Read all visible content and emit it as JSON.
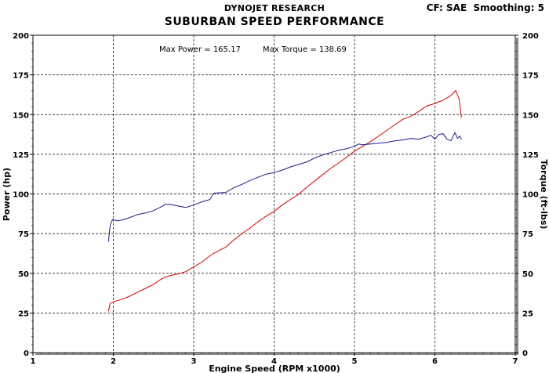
{
  "header": {
    "brand": "DYNOJET RESEARCH",
    "title": "SUBURBAN SPEED PERFORMANCE",
    "settings": "CF: SAE  Smoothing: 5"
  },
  "chart_data": {
    "type": "line",
    "xlabel": "Engine Speed (RPM x1000)",
    "ylabel_left": "Power (hp)",
    "ylabel_right": "Torque (ft-lbs)",
    "xlim": [
      1,
      7
    ],
    "ylim": [
      0,
      200
    ],
    "x_ticks": [
      "1",
      "2",
      "3",
      "4",
      "5",
      "6",
      "7"
    ],
    "y_ticks": [
      "0",
      "25",
      "50",
      "75",
      "100",
      "125",
      "150",
      "175",
      "200"
    ],
    "grid": true,
    "annotation": {
      "max_power_label": "Max Power = 165.17",
      "max_torque_label": "Max Torque = 138.69"
    },
    "series": [
      {
        "name": "Power",
        "axis": "left",
        "color": "#d00000",
        "points": [
          [
            1.94,
            26
          ],
          [
            1.96,
            31
          ],
          [
            2.0,
            32
          ],
          [
            2.1,
            33.5
          ],
          [
            2.2,
            35.5
          ],
          [
            2.3,
            38
          ],
          [
            2.4,
            40.5
          ],
          [
            2.5,
            43
          ],
          [
            2.6,
            46.5
          ],
          [
            2.7,
            48.5
          ],
          [
            2.8,
            49.5
          ],
          [
            2.9,
            51
          ],
          [
            3.0,
            54
          ],
          [
            3.1,
            57
          ],
          [
            3.2,
            61
          ],
          [
            3.3,
            64
          ],
          [
            3.4,
            66.5
          ],
          [
            3.5,
            71
          ],
          [
            3.6,
            75
          ],
          [
            3.7,
            78.5
          ],
          [
            3.8,
            82.5
          ],
          [
            3.9,
            86
          ],
          [
            4.0,
            89
          ],
          [
            4.1,
            93
          ],
          [
            4.2,
            96.5
          ],
          [
            4.3,
            99.5
          ],
          [
            4.4,
            104
          ],
          [
            4.5,
            108
          ],
          [
            4.6,
            112
          ],
          [
            4.7,
            116
          ],
          [
            4.8,
            119.5
          ],
          [
            4.9,
            123
          ],
          [
            5.0,
            127
          ],
          [
            5.1,
            130
          ],
          [
            5.2,
            133
          ],
          [
            5.3,
            136.5
          ],
          [
            5.4,
            140
          ],
          [
            5.5,
            143.5
          ],
          [
            5.6,
            147
          ],
          [
            5.7,
            149
          ],
          [
            5.8,
            152
          ],
          [
            5.9,
            155.5
          ],
          [
            6.0,
            157
          ],
          [
            6.1,
            159
          ],
          [
            6.2,
            162
          ],
          [
            6.26,
            165.17
          ],
          [
            6.3,
            160
          ],
          [
            6.33,
            148
          ]
        ]
      },
      {
        "name": "Torque",
        "axis": "right",
        "color": "#1a1a8c",
        "points": [
          [
            1.94,
            70
          ],
          [
            1.96,
            80
          ],
          [
            1.99,
            84
          ],
          [
            2.05,
            83
          ],
          [
            2.1,
            83.5
          ],
          [
            2.2,
            85
          ],
          [
            2.3,
            87
          ],
          [
            2.4,
            88
          ],
          [
            2.5,
            89.5
          ],
          [
            2.6,
            92
          ],
          [
            2.65,
            93.5
          ],
          [
            2.7,
            93.5
          ],
          [
            2.8,
            92.5
          ],
          [
            2.9,
            91.5
          ],
          [
            3.0,
            93
          ],
          [
            3.1,
            95
          ],
          [
            3.2,
            96.5
          ],
          [
            3.25,
            100.5
          ],
          [
            3.4,
            101
          ],
          [
            3.5,
            104
          ],
          [
            3.6,
            106
          ],
          [
            3.7,
            108.5
          ],
          [
            3.8,
            110.5
          ],
          [
            3.9,
            112.5
          ],
          [
            4.0,
            113.5
          ],
          [
            4.1,
            115
          ],
          [
            4.2,
            117
          ],
          [
            4.3,
            118.5
          ],
          [
            4.4,
            120
          ],
          [
            4.5,
            122.5
          ],
          [
            4.6,
            124.5
          ],
          [
            4.7,
            126
          ],
          [
            4.8,
            127.5
          ],
          [
            4.9,
            128.5
          ],
          [
            5.0,
            130
          ],
          [
            5.05,
            131.5
          ],
          [
            5.1,
            131
          ],
          [
            5.2,
            131.5
          ],
          [
            5.3,
            132
          ],
          [
            5.4,
            132.5
          ],
          [
            5.5,
            133.5
          ],
          [
            5.6,
            134
          ],
          [
            5.7,
            135
          ],
          [
            5.8,
            134.5
          ],
          [
            5.9,
            136
          ],
          [
            5.95,
            137
          ],
          [
            6.0,
            134.5
          ],
          [
            6.05,
            137.5
          ],
          [
            6.1,
            138
          ],
          [
            6.15,
            134.5
          ],
          [
            6.2,
            133.5
          ],
          [
            6.25,
            138.69
          ],
          [
            6.28,
            135
          ],
          [
            6.31,
            136.5
          ],
          [
            6.33,
            134
          ]
        ]
      }
    ]
  }
}
